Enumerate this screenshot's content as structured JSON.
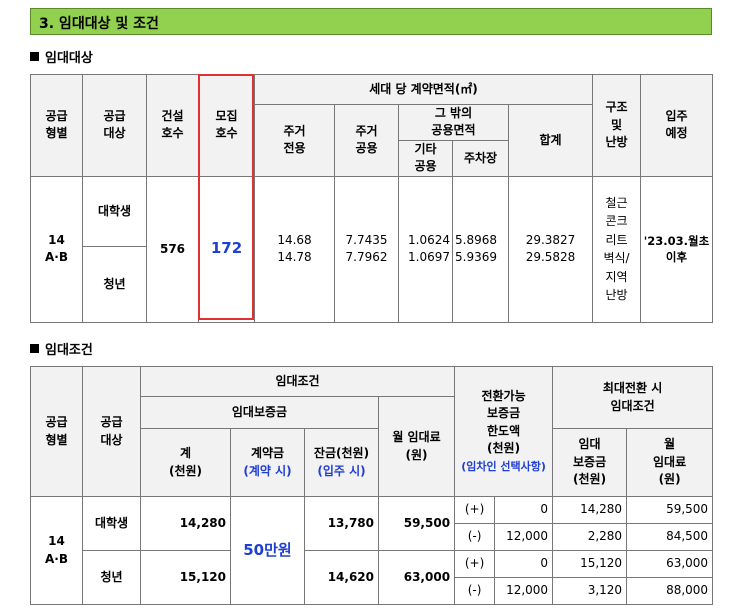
{
  "section_title": "3. 임대대상 및 조건",
  "target": {
    "heading": "임대대상",
    "headers": {
      "supply_type": [
        "공급",
        "형별"
      ],
      "supply_target": [
        "공급",
        "대상"
      ],
      "built_units": [
        "건설",
        "호수"
      ],
      "recruit_units": [
        "모집",
        "호수"
      ],
      "area_group": "세대 당 계약면적(㎡)",
      "private_area": [
        "주거",
        "전용"
      ],
      "shared_area": [
        "주거",
        "공용"
      ],
      "other_shared_group": [
        "그 밖의",
        "공용면적"
      ],
      "etc_shared": [
        "기타",
        "공용"
      ],
      "parking": "주차장",
      "total": "합계",
      "structure": [
        "구조",
        "및",
        "난방"
      ],
      "move_in": [
        "입주",
        "예정"
      ]
    },
    "row": {
      "type": [
        "14",
        "A·B"
      ],
      "target1": "대학생",
      "target2": "청년",
      "built": "576",
      "recruit": "172",
      "private": [
        "14.68",
        "14.78"
      ],
      "shared": [
        "7.7435",
        "7.7962"
      ],
      "etc": [
        "1.0624",
        "1.0697"
      ],
      "parking": [
        "5.8968",
        "5.9369"
      ],
      "total": [
        "29.3827",
        "29.5828"
      ],
      "structure": [
        "철근",
        "콘크",
        "리트",
        "벽식/",
        "지역",
        "난방"
      ],
      "move_in": [
        "'23.03.월초",
        "이후"
      ]
    }
  },
  "conditions": {
    "heading": "임대조건",
    "headers": {
      "supply_type": [
        "공급",
        "형별"
      ],
      "supply_target": [
        "공급",
        "대상"
      ],
      "lease_cond": "임대조건",
      "deposit": "임대보증금",
      "sum": [
        "계",
        "(천원)"
      ],
      "contract": [
        "계약금",
        "(계약 시)"
      ],
      "balance": [
        "잔금(천원)",
        "(입주 시)"
      ],
      "monthly": [
        "월 임대료",
        "(원)"
      ],
      "convertible": [
        "전환가능",
        "보증금",
        "한도액",
        "(천원)"
      ],
      "convertible_note": "(임차인 선택사항)",
      "max_conv": [
        "최대전환 시",
        "임대조건"
      ],
      "max_deposit": [
        "임대",
        "보증금",
        "(천원)"
      ],
      "max_monthly": [
        "월",
        "임대료",
        "(원)"
      ]
    },
    "rows": {
      "type": [
        "14",
        "A·B"
      ],
      "contract": "50만원",
      "student": {
        "target": "대학생",
        "sum": "14,280",
        "balance": "13,780",
        "monthly": "59,500",
        "conv": [
          {
            "sign": "(+)",
            "value": "0"
          },
          {
            "sign": "(-)",
            "value": "12,000"
          }
        ],
        "max_deposit": [
          "14,280",
          "2,280"
        ],
        "max_monthly": [
          "59,500",
          "84,500"
        ]
      },
      "youth": {
        "target": "청년",
        "sum": "15,120",
        "balance": "14,620",
        "monthly": "63,000",
        "conv": [
          {
            "sign": "(+)",
            "value": "0"
          },
          {
            "sign": "(-)",
            "value": "12,000"
          }
        ],
        "max_deposit": [
          "15,120",
          "3,120"
        ],
        "max_monthly": [
          "63,000",
          "88,000"
        ]
      }
    }
  }
}
